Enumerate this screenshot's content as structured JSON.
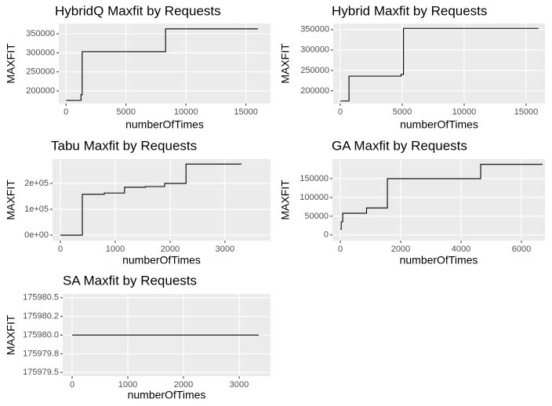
{
  "chart_data": [
    {
      "type": "line",
      "step": "post",
      "title": "HybridQ Maxfit by Requests",
      "x_label": "numberOfTimes",
      "y_label": "MAXFIT",
      "x": [
        0,
        1250,
        1350,
        8300,
        16000
      ],
      "series": [
        {
          "name": "MAXFIT",
          "color": "#000000",
          "values": [
            175000,
            190000,
            303000,
            363000,
            363000
          ]
        }
      ],
      "xlim": [
        -600,
        17050
      ],
      "xticks": [
        0,
        5000,
        10000,
        15000
      ],
      "ylim": [
        167000,
        377000
      ],
      "yticks": [
        200000,
        250000,
        300000,
        350000
      ],
      "grid": true
    },
    {
      "type": "line",
      "step": "post",
      "title": "Hybrid Maxfit by Requests",
      "x_label": "numberOfTimes",
      "y_label": "MAXFIT",
      "x": [
        0,
        700,
        4900,
        5100,
        16000
      ],
      "series": [
        {
          "name": "MAXFIT",
          "color": "#000000",
          "values": [
            175000,
            236000,
            240000,
            353000,
            353000
          ]
        }
      ],
      "xlim": [
        -570,
        16520
      ],
      "xticks": [
        0,
        5000,
        10000,
        15000
      ],
      "ylim": [
        169000,
        365000
      ],
      "yticks": [
        200000,
        250000,
        300000,
        350000
      ],
      "grid": true
    },
    {
      "type": "line",
      "step": "post",
      "title": "Tabu Maxfit by Requests",
      "x_label": "numberOfTimes",
      "y_label": "MAXFIT",
      "x": [
        0,
        400,
        800,
        1170,
        1550,
        1900,
        2290,
        3300
      ],
      "series": [
        {
          "name": "MAXFIT",
          "color": "#000000",
          "values": [
            0,
            158000,
            163000,
            185000,
            188000,
            200000,
            275000,
            275000
          ]
        }
      ],
      "xlim": [
        -143,
        3830
      ],
      "xticks": [
        0,
        1000,
        2000,
        3000
      ],
      "ylim": [
        -21000,
        294000
      ],
      "yticks": [
        {
          "value": 0,
          "label": "0e+00"
        },
        {
          "value": 100000,
          "label": "1e+05"
        },
        {
          "value": 200000,
          "label": "2e+05"
        }
      ],
      "grid": true
    },
    {
      "type": "line",
      "step": "post",
      "title": "GA Maxfit by Requests",
      "x_label": "numberOfTimes",
      "y_label": "MAXFIT",
      "x": [
        0,
        30,
        80,
        870,
        1560,
        4650,
        6700
      ],
      "series": [
        {
          "name": "MAXFIT",
          "color": "#000000",
          "values": [
            15000,
            35000,
            58000,
            72000,
            150000,
            188000,
            188000
          ]
        }
      ],
      "xlim": [
        -260,
        6780
      ],
      "xticks": [
        0,
        2000,
        4000,
        6000
      ],
      "ylim": [
        -15000,
        202000
      ],
      "yticks": [
        0,
        50000,
        100000,
        150000
      ],
      "grid": true
    },
    {
      "type": "line",
      "step": "post",
      "title": "SA Maxfit by Requests",
      "x_label": "numberOfTimes",
      "y_label": "MAXFIT",
      "x": [
        0,
        3350
      ],
      "series": [
        {
          "name": "MAXFIT",
          "color": "#000000",
          "values": [
            175980,
            175980
          ]
        }
      ],
      "xlim": [
        -169,
        3563
      ],
      "xticks": [
        0,
        1000,
        2000,
        3000
      ],
      "ylim": [
        175979.45,
        175980.55
      ],
      "yticks": [
        175979.5,
        {
          "value": 175979.75,
          "label": "175979.8"
        },
        {
          "value": 175980,
          "label": "175980.0"
        },
        {
          "value": 175980.25,
          "label": "175980.2"
        },
        175980.5
      ],
      "grid": true
    }
  ]
}
